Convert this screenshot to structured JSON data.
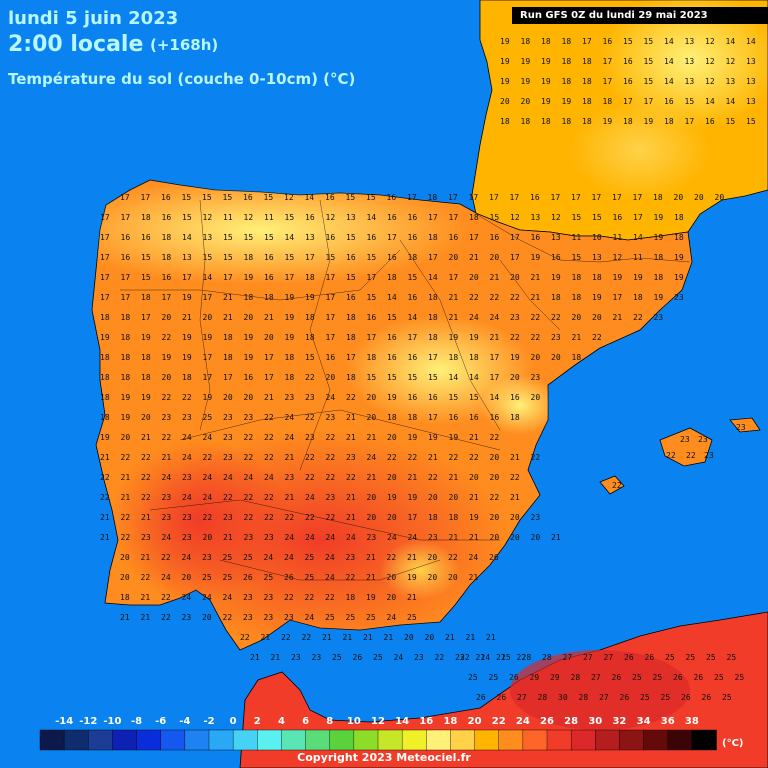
{
  "header": {
    "date": "lundi 5 juin 2023",
    "time": "2:00 locale",
    "lead": "(+168h)",
    "parameter": "Température du sol (couche 0-10cm) (°C)"
  },
  "run_label": "Run GFS 0Z du lundi 29 mai 2023",
  "copyright": "Copyright 2023 Meteociel.fr",
  "legend": {
    "unit": "(°C)",
    "ticks": [
      "-14",
      "-12",
      "-10",
      "-8",
      "-6",
      "-4",
      "-2",
      "0",
      "2",
      "4",
      "6",
      "8",
      "10",
      "12",
      "14",
      "16",
      "18",
      "20",
      "22",
      "24",
      "26",
      "28",
      "30",
      "32",
      "34",
      "36",
      "38"
    ],
    "colors": [
      "#0b1a4a",
      "#0f2d6e",
      "#1b3d96",
      "#0d22b4",
      "#0a2ddc",
      "#1458f0",
      "#1e82f0",
      "#28a8f5",
      "#46d2f5",
      "#5af0f0",
      "#5ae6b4",
      "#5adc78",
      "#5ad23c",
      "#8cdc28",
      "#c8e628",
      "#f0f028",
      "#fff078",
      "#ffd24a",
      "#ffb400",
      "#ff8c1e",
      "#ff6428",
      "#f03c28",
      "#dc2828",
      "#b41e1e",
      "#8c1414",
      "#640a0a",
      "#3c0505",
      "#000000"
    ]
  },
  "colors": {
    "sea": "#0a82f0",
    "land_cool": "#fff078",
    "land_mild": "#ffb400",
    "land_warm": "#ff8c1e",
    "land_hot": "#f03c28",
    "header_text": "#b8f7ff"
  },
  "grid_values": [
    {
      "r": 0,
      "v": [
        "19",
        "18",
        "18",
        "18",
        "17",
        "16",
        "15",
        "15",
        "14",
        "13",
        "12",
        "14",
        "14",
        "12"
      ]
    },
    {
      "r": 1,
      "v": [
        "19",
        "19",
        "19",
        "18",
        "18",
        "17",
        "16",
        "15",
        "14",
        "13",
        "12",
        "12",
        "13",
        "13"
      ]
    },
    {
      "r": 2,
      "v": [
        "19",
        "19",
        "19",
        "18",
        "18",
        "17",
        "16",
        "15",
        "14",
        "13",
        "12",
        "13",
        "13",
        "12"
      ]
    },
    {
      "r": 3,
      "v": [
        "20",
        "20",
        "19",
        "19",
        "18",
        "18",
        "17",
        "17",
        "16",
        "15",
        "14",
        "14",
        "13",
        "13"
      ]
    },
    {
      "r": 4,
      "v": [
        "18",
        "18",
        "18",
        "18",
        "18",
        "19",
        "18",
        "19",
        "18",
        "17",
        "16",
        "15",
        "15",
        "16"
      ]
    },
    {
      "r": 5,
      "v": [
        "17",
        "17",
        "16",
        "15",
        "15",
        "15",
        "16",
        "15",
        "12",
        "14",
        "16",
        "15",
        "15",
        "16",
        "17",
        "18",
        "17",
        "17",
        "17",
        "17",
        "16",
        "17",
        "17",
        "17",
        "17",
        "17",
        "18",
        "20",
        "20",
        "20"
      ]
    },
    {
      "r": 6,
      "v": [
        "17",
        "17",
        "18",
        "16",
        "15",
        "12",
        "11",
        "12",
        "11",
        "15",
        "16",
        "12",
        "13",
        "14",
        "16",
        "16",
        "17",
        "17",
        "18",
        "15",
        "12",
        "13",
        "12",
        "15",
        "15",
        "16",
        "17",
        "19",
        "18"
      ]
    },
    {
      "r": 7,
      "v": [
        "17",
        "16",
        "16",
        "18",
        "14",
        "13",
        "15",
        "15",
        "15",
        "14",
        "13",
        "16",
        "15",
        "16",
        "17",
        "16",
        "18",
        "16",
        "17",
        "16",
        "17",
        "16",
        "13",
        "11",
        "10",
        "11",
        "14",
        "19",
        "18"
      ]
    },
    {
      "r": 8,
      "v": [
        "17",
        "16",
        "15",
        "18",
        "13",
        "15",
        "15",
        "18",
        "16",
        "15",
        "17",
        "15",
        "16",
        "15",
        "16",
        "18",
        "17",
        "20",
        "21",
        "20",
        "17",
        "19",
        "16",
        "15",
        "13",
        "12",
        "11",
        "18",
        "19"
      ]
    },
    {
      "r": 9,
      "v": [
        "17",
        "17",
        "15",
        "16",
        "17",
        "14",
        "17",
        "19",
        "16",
        "17",
        "18",
        "17",
        "15",
        "17",
        "18",
        "15",
        "14",
        "17",
        "20",
        "21",
        "20",
        "21",
        "19",
        "18",
        "18",
        "19",
        "19",
        "18",
        "19"
      ]
    },
    {
      "r": 10,
      "v": [
        "17",
        "17",
        "18",
        "17",
        "19",
        "17",
        "21",
        "18",
        "18",
        "19",
        "19",
        "17",
        "16",
        "15",
        "14",
        "16",
        "18",
        "21",
        "22",
        "22",
        "22",
        "21",
        "18",
        "18",
        "19",
        "17",
        "18",
        "19",
        "23"
      ]
    },
    {
      "r": 11,
      "v": [
        "18",
        "18",
        "17",
        "20",
        "21",
        "20",
        "21",
        "20",
        "21",
        "19",
        "18",
        "17",
        "18",
        "16",
        "15",
        "14",
        "18",
        "21",
        "24",
        "24",
        "23",
        "22",
        "22",
        "20",
        "20",
        "21",
        "22",
        "23"
      ]
    },
    {
      "r": 12,
      "v": [
        "19",
        "18",
        "19",
        "22",
        "19",
        "19",
        "18",
        "19",
        "20",
        "19",
        "18",
        "17",
        "18",
        "17",
        "16",
        "17",
        "18",
        "19",
        "19",
        "21",
        "22",
        "22",
        "23",
        "21",
        "22"
      ]
    },
    {
      "r": 13,
      "v": [
        "18",
        "18",
        "18",
        "19",
        "19",
        "17",
        "18",
        "19",
        "17",
        "18",
        "15",
        "16",
        "17",
        "18",
        "16",
        "16",
        "17",
        "18",
        "18",
        "17",
        "19",
        "20",
        "20",
        "18"
      ]
    },
    {
      "r": 14,
      "v": [
        "18",
        "18",
        "18",
        "20",
        "18",
        "17",
        "17",
        "16",
        "17",
        "18",
        "22",
        "20",
        "18",
        "15",
        "15",
        "15",
        "15",
        "14",
        "14",
        "17",
        "20",
        "23"
      ]
    },
    {
      "r": 15,
      "v": [
        "18",
        "19",
        "19",
        "22",
        "22",
        "19",
        "20",
        "20",
        "21",
        "23",
        "23",
        "24",
        "22",
        "20",
        "19",
        "16",
        "16",
        "15",
        "15",
        "14",
        "16",
        "20"
      ]
    },
    {
      "r": 16,
      "v": [
        "18",
        "19",
        "20",
        "23",
        "23",
        "25",
        "23",
        "23",
        "22",
        "24",
        "22",
        "23",
        "21",
        "20",
        "18",
        "18",
        "17",
        "16",
        "16",
        "16",
        "18"
      ]
    },
    {
      "r": 17,
      "v": [
        "19",
        "20",
        "21",
        "22",
        "24",
        "24",
        "23",
        "22",
        "22",
        "24",
        "23",
        "22",
        "21",
        "21",
        "20",
        "19",
        "19",
        "19",
        "21",
        "22"
      ]
    },
    {
      "r": 18,
      "v": [
        "21",
        "22",
        "22",
        "21",
        "24",
        "22",
        "23",
        "22",
        "22",
        "21",
        "22",
        "22",
        "23",
        "24",
        "22",
        "22",
        "21",
        "22",
        "22",
        "20",
        "21",
        "22"
      ]
    },
    {
      "r": 19,
      "v": [
        "22",
        "21",
        "22",
        "24",
        "23",
        "24",
        "24",
        "24",
        "24",
        "23",
        "22",
        "22",
        "22",
        "21",
        "20",
        "21",
        "22",
        "21",
        "20",
        "20",
        "22"
      ]
    },
    {
      "r": 20,
      "v": [
        "22",
        "21",
        "22",
        "23",
        "24",
        "24",
        "22",
        "22",
        "22",
        "21",
        "24",
        "23",
        "21",
        "20",
        "19",
        "19",
        "20",
        "20",
        "21",
        "22",
        "21"
      ]
    },
    {
      "r": 21,
      "v": [
        "21",
        "22",
        "21",
        "23",
        "23",
        "22",
        "23",
        "22",
        "22",
        "22",
        "22",
        "22",
        "21",
        "20",
        "20",
        "17",
        "18",
        "18",
        "19",
        "20",
        "20",
        "23"
      ]
    },
    {
      "r": 22,
      "v": [
        "21",
        "22",
        "23",
        "24",
        "23",
        "20",
        "21",
        "23",
        "23",
        "24",
        "24",
        "24",
        "24",
        "23",
        "24",
        "24",
        "23",
        "21",
        "21",
        "20",
        "20",
        "20",
        "21"
      ]
    },
    {
      "r": 23,
      "v": [
        "20",
        "21",
        "22",
        "24",
        "23",
        "25",
        "25",
        "24",
        "24",
        "25",
        "24",
        "23",
        "21",
        "22",
        "21",
        "20",
        "22",
        "24",
        "26"
      ]
    },
    {
      "r": 24,
      "v": [
        "20",
        "22",
        "24",
        "20",
        "25",
        "25",
        "26",
        "25",
        "26",
        "25",
        "24",
        "22",
        "21",
        "20",
        "19",
        "20",
        "20",
        "21"
      ]
    },
    {
      "r": 25,
      "v": [
        "18",
        "21",
        "22",
        "24",
        "24",
        "24",
        "23",
        "23",
        "22",
        "22",
        "22",
        "18",
        "19",
        "20",
        "21"
      ]
    },
    {
      "r": 26,
      "v": [
        "21",
        "21",
        "22",
        "23",
        "20",
        "22",
        "23",
        "23",
        "23",
        "24",
        "25",
        "25",
        "25",
        "24",
        "25"
      ]
    },
    {
      "r": 27,
      "v": [
        "22",
        "21",
        "22",
        "22",
        "21",
        "21",
        "21",
        "21",
        "20",
        "20",
        "21",
        "21",
        "21"
      ]
    },
    {
      "r": 28,
      "v": [
        "21",
        "21",
        "23",
        "23",
        "25",
        "26",
        "25",
        "24",
        "23",
        "22",
        "23",
        "21",
        "21",
        "22"
      ]
    },
    {
      "r": 29,
      "v": [
        "22",
        "24",
        "25",
        "28",
        "28",
        "27",
        "27",
        "27",
        "26",
        "26",
        "25",
        "25",
        "25",
        "25"
      ]
    },
    {
      "r": 30,
      "v": [
        "25",
        "25",
        "26",
        "29",
        "29",
        "28",
        "27",
        "26",
        "25",
        "25",
        "26",
        "26",
        "25",
        "25"
      ]
    },
    {
      "r": 31,
      "v": [
        "26",
        "26",
        "27",
        "28",
        "30",
        "28",
        "27",
        "26",
        "25",
        "25",
        "26",
        "26",
        "25"
      ]
    }
  ],
  "balearic_values": [
    "23",
    "23",
    "22",
    "22",
    "22",
    "23",
    "23"
  ]
}
